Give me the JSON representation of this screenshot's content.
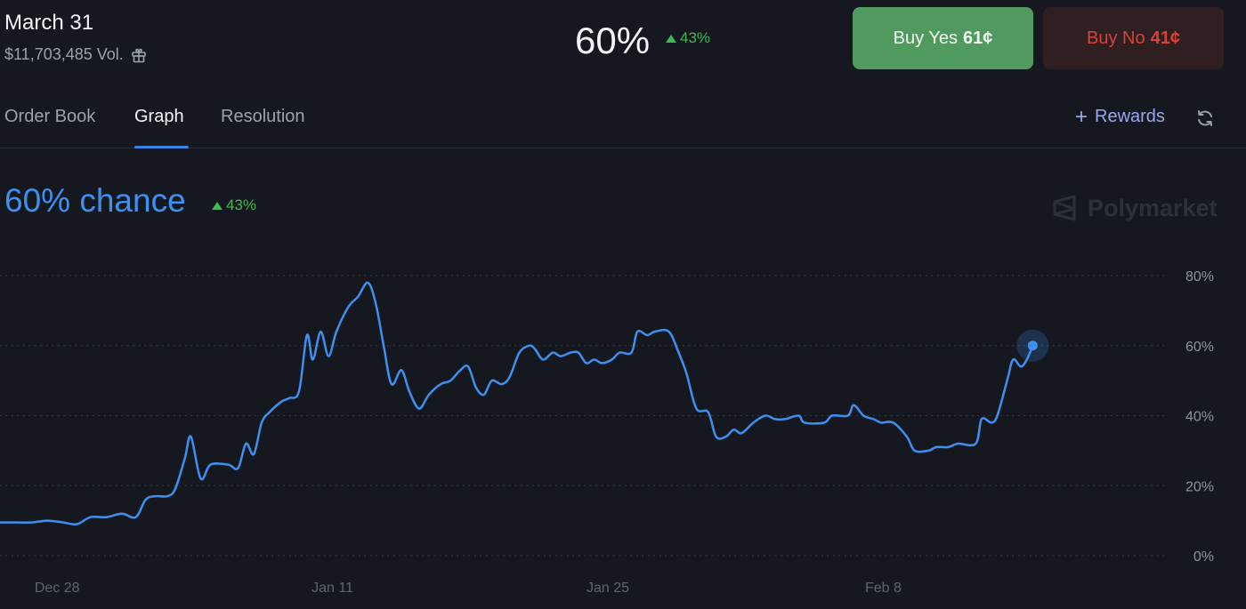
{
  "header": {
    "title": "March 31",
    "volume": "$11,703,485 Vol.",
    "probability": "60%",
    "delta": "43%"
  },
  "buttons": {
    "yes_label": "Buy Yes",
    "yes_price": "61¢",
    "no_label": "Buy No",
    "no_price": "41¢"
  },
  "tabs": [
    {
      "label": "Order Book"
    },
    {
      "label": "Graph",
      "active": true
    },
    {
      "label": "Resolution"
    }
  ],
  "rewards": {
    "label": "Rewards"
  },
  "graph": {
    "chance": "60% chance",
    "delta": "43%",
    "brand": "Polymarket"
  },
  "colors": {
    "accent": "#3b82e6",
    "positive": "#3fb950",
    "yes_button": "#519a5f",
    "no_button": "#2f1f21",
    "no_text": "#d9423a",
    "rewards": "#9aa7f0"
  },
  "chart_data": {
    "type": "line",
    "y_ticks": [
      "80%",
      "60%",
      "40%",
      "20%",
      "0%"
    ],
    "x_ticks": [
      {
        "label": "Dec 28",
        "day": 2
      },
      {
        "label": "Jan 11",
        "day": 16
      },
      {
        "label": "Jan 25",
        "day": 30
      },
      {
        "label": "Feb 8",
        "day": 44
      }
    ],
    "ylim": [
      0,
      80
    ],
    "grid": true,
    "series": [
      {
        "color": "#3f8ff0",
        "points": [
          [
            -3.35,
            16.5
          ],
          [
            -2.8,
            12
          ],
          [
            -2.3,
            10
          ],
          [
            -1.7,
            9.5
          ],
          [
            -0.5,
            9.5
          ],
          [
            0.7,
            9.5
          ],
          [
            1.5,
            10
          ],
          [
            2.3,
            9.5
          ],
          [
            3,
            9
          ],
          [
            3.7,
            11
          ],
          [
            4.5,
            11
          ],
          [
            5.3,
            12
          ],
          [
            6,
            11
          ],
          [
            6.5,
            16
          ],
          [
            7,
            17
          ],
          [
            7.6,
            17
          ],
          [
            8,
            19
          ],
          [
            8.5,
            28
          ],
          [
            8.8,
            34
          ],
          [
            9.3,
            22
          ],
          [
            9.8,
            26
          ],
          [
            10.7,
            26
          ],
          [
            11.2,
            25
          ],
          [
            11.6,
            32
          ],
          [
            12,
            29
          ],
          [
            12.4,
            38
          ],
          [
            12.8,
            41
          ],
          [
            13.4,
            44
          ],
          [
            13.8,
            45
          ],
          [
            14.3,
            47
          ],
          [
            14.7,
            63
          ],
          [
            15,
            56
          ],
          [
            15.4,
            64
          ],
          [
            15.8,
            57
          ],
          [
            16.2,
            64
          ],
          [
            16.8,
            71
          ],
          [
            17.3,
            74
          ],
          [
            17.8,
            78
          ],
          [
            18.2,
            72
          ],
          [
            18.6,
            60
          ],
          [
            19,
            49
          ],
          [
            19.5,
            53
          ],
          [
            19.9,
            47
          ],
          [
            20.4,
            42
          ],
          [
            20.9,
            46
          ],
          [
            21.5,
            49
          ],
          [
            22,
            50
          ],
          [
            22.5,
            53
          ],
          [
            22.9,
            54
          ],
          [
            23.3,
            48
          ],
          [
            23.7,
            46
          ],
          [
            24.1,
            50
          ],
          [
            24.6,
            49
          ],
          [
            25,
            51
          ],
          [
            25.5,
            58
          ],
          [
            26,
            60
          ],
          [
            26.3,
            59
          ],
          [
            26.7,
            56
          ],
          [
            27.2,
            58
          ],
          [
            27.6,
            57
          ],
          [
            28.1,
            58
          ],
          [
            28.5,
            58
          ],
          [
            28.9,
            55
          ],
          [
            29.3,
            56
          ],
          [
            29.7,
            55
          ],
          [
            30.2,
            56
          ],
          [
            30.6,
            58
          ],
          [
            31.2,
            58
          ],
          [
            31.5,
            64
          ],
          [
            32,
            63
          ],
          [
            32.4,
            64
          ],
          [
            33.1,
            64
          ],
          [
            33.6,
            58
          ],
          [
            34,
            52
          ],
          [
            34.5,
            42
          ],
          [
            35.1,
            41
          ],
          [
            35.5,
            34
          ],
          [
            36,
            34
          ],
          [
            36.4,
            36
          ],
          [
            36.8,
            35
          ],
          [
            37.4,
            38
          ],
          [
            38,
            40
          ],
          [
            38.5,
            39
          ],
          [
            39,
            39
          ],
          [
            39.7,
            40
          ],
          [
            40,
            38
          ],
          [
            41,
            38
          ],
          [
            41.4,
            40
          ],
          [
            42.2,
            40
          ],
          [
            42.5,
            43
          ],
          [
            43,
            40
          ],
          [
            43.5,
            39
          ],
          [
            43.9,
            38
          ],
          [
            44.5,
            38
          ],
          [
            45.2,
            34
          ],
          [
            45.6,
            30
          ],
          [
            46.3,
            30
          ],
          [
            46.7,
            31
          ],
          [
            47.3,
            31
          ],
          [
            47.8,
            32
          ],
          [
            48.7,
            32
          ],
          [
            49,
            39
          ],
          [
            49.5,
            38
          ],
          [
            49.8,
            40
          ],
          [
            50.3,
            50
          ],
          [
            50.6,
            56
          ],
          [
            51,
            54
          ],
          [
            51.3,
            56
          ],
          [
            51.6,
            60
          ]
        ],
        "last_point": [
          51.6,
          60
        ]
      }
    ]
  }
}
